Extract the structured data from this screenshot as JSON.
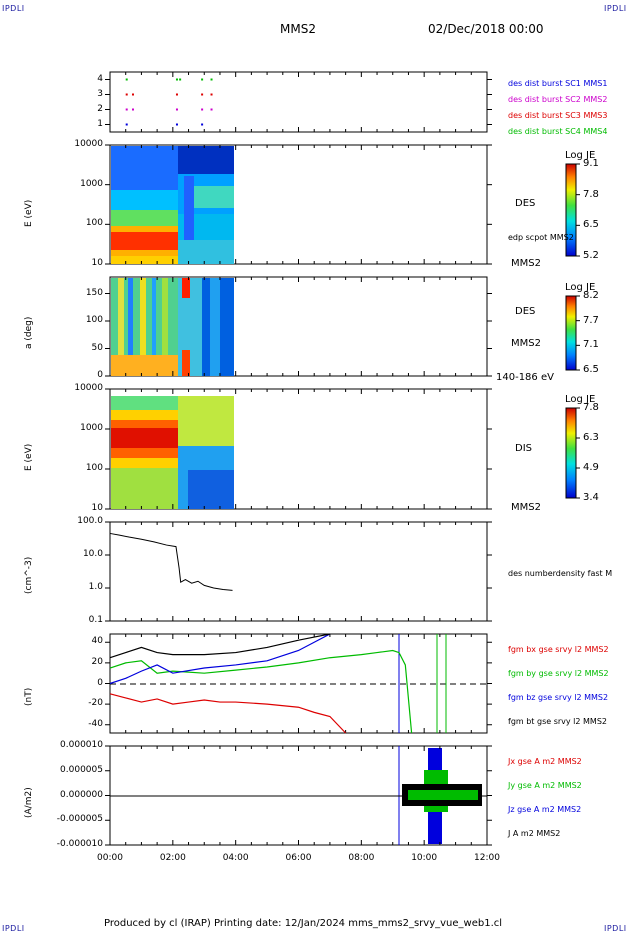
{
  "header": {
    "corner_tl": "IPDLI",
    "corner_tr": "IPDLI",
    "corner_bl": "IPDLI",
    "corner_br": "IPDLI",
    "spacecraft": "MMS2",
    "date": "02/Dec/2018 00:00"
  },
  "footer": {
    "text": "Produced by cl (IRAP)   Printing date: 12/Jan/2024   mms_mms2_srvy_vue_web1.cl"
  },
  "colors": {
    "blue": "#0000dd",
    "magenta": "#cc00cc",
    "red": "#dd0000",
    "green": "#00bb00",
    "black": "#000000"
  },
  "chart_data": [
    {
      "type": "scatter",
      "ylim": [
        0.5,
        4.5
      ],
      "yticks": [
        "1",
        "2",
        "3",
        "4"
      ],
      "legend": [
        {
          "label": "des dist burst SC1 MMS1",
          "color": "#0000dd"
        },
        {
          "label": "des dist burst SC2 MMS2",
          "color": "#cc00cc"
        },
        {
          "label": "des dist burst SC3 MMS3",
          "color": "#dd0000"
        },
        {
          "label": "des dist burst SC4 MMS4",
          "color": "#00bb00"
        }
      ],
      "series": [
        {
          "name": "des dist burst SC1 MMS1",
          "y": 1,
          "x": [
            0.5,
            2.1,
            2.9
          ]
        },
        {
          "name": "des dist burst SC2 MMS2",
          "y": 2,
          "x": [
            0.5,
            0.7,
            2.1,
            2.9,
            3.2
          ]
        },
        {
          "name": "des dist burst SC3 MMS3",
          "y": 3,
          "x": [
            0.5,
            0.7,
            2.1,
            2.9,
            3.2
          ]
        },
        {
          "name": "des dist burst SC4 MMS4",
          "y": 4,
          "x": [
            0.5,
            2.1,
            2.2,
            2.9,
            3.2
          ]
        }
      ]
    },
    {
      "type": "heatmap",
      "ylabel": "E (eV)",
      "yticks": [
        "10",
        "100",
        "1000",
        "10000"
      ],
      "label": "DES",
      "sublabel": "edp scpot MMS2",
      "bottom_label": "MMS2",
      "colorbar": {
        "title": "Log JE",
        "ticks": [
          "9.1",
          "7.8",
          "6.5",
          "5.2"
        ]
      },
      "coverage_hours": [
        0,
        3.9
      ]
    },
    {
      "type": "heatmap",
      "ylabel": "a (deg)",
      "yticks": [
        "0",
        "50",
        "100",
        "150"
      ],
      "label": "DES",
      "sublabel": "MMS2",
      "bottom_label": "140-186 eV",
      "colorbar": {
        "title": "Log JE",
        "ticks": [
          "8.2",
          "7.7",
          "7.1",
          "6.5"
        ]
      },
      "coverage_hours": [
        0,
        3.9
      ]
    },
    {
      "type": "heatmap",
      "ylabel": "E (eV)",
      "yticks": [
        "10",
        "100",
        "1000",
        "10000"
      ],
      "label": "DIS",
      "bottom_label": "MMS2",
      "colorbar": {
        "title": "Log JE",
        "ticks": [
          "7.8",
          "6.3",
          "4.9",
          "3.4"
        ]
      },
      "coverage_hours": [
        0,
        3.9
      ]
    },
    {
      "type": "line",
      "ylabel": "(cm^-3)",
      "yticks": [
        "0.1",
        "1.0",
        "10.0",
        "100.0"
      ],
      "scale": "log",
      "legend": [
        {
          "label": "des numberdensity fast M",
          "color": "#000000"
        }
      ],
      "series": [
        {
          "name": "des numberdensity fast M",
          "x": [
            0.0,
            0.3,
            0.6,
            1.0,
            1.4,
            1.8,
            2.1,
            2.2,
            2.25,
            2.4,
            2.6,
            2.8,
            3.0,
            3.3,
            3.6,
            3.9
          ],
          "y": [
            45,
            40,
            35,
            30,
            25,
            20,
            18,
            4,
            1.5,
            1.8,
            1.4,
            1.6,
            1.2,
            1.0,
            0.9,
            0.85
          ]
        }
      ]
    },
    {
      "type": "line",
      "ylabel": "(nT)",
      "yticks": [
        "-40",
        "-20",
        "0",
        "20",
        "40"
      ],
      "ylim": [
        -48,
        48
      ],
      "legend": [
        {
          "label": "fgm bx gse srvy l2 MMS2",
          "color": "#dd0000"
        },
        {
          "label": "fgm by gse srvy l2 MMS2",
          "color": "#00bb00"
        },
        {
          "label": "fgm bz gse srvy l2 MMS2",
          "color": "#0000dd"
        },
        {
          "label": "fgm bt gse srvy l2 MMS2",
          "color": "#000000"
        }
      ],
      "series": [
        {
          "name": "fgm bx gse srvy l2 MMS2",
          "x": [
            0,
            0.5,
            1,
            1.5,
            2,
            2.5,
            3,
            3.5,
            4,
            5,
            6,
            6.5,
            7,
            7.5
          ],
          "y": [
            -10,
            -14,
            -18,
            -15,
            -20,
            -18,
            -16,
            -18,
            -18,
            -20,
            -23,
            -28,
            -32,
            -48
          ]
        },
        {
          "name": "fgm by gse srvy l2 MMS2",
          "x": [
            0,
            0.5,
            1,
            1.5,
            2,
            3,
            4,
            5,
            6,
            7,
            8,
            8.5,
            9,
            9.2,
            9.4,
            9.6
          ],
          "y": [
            15,
            20,
            22,
            10,
            12,
            10,
            13,
            16,
            20,
            25,
            28,
            30,
            32,
            30,
            18,
            -48
          ]
        },
        {
          "name": "fgm bz gse srvy l2 MMS2",
          "x": [
            0,
            0.5,
            1,
            1.5,
            2,
            3,
            4,
            5,
            6,
            6.5,
            7
          ],
          "y": [
            0,
            5,
            12,
            18,
            10,
            15,
            18,
            22,
            32,
            40,
            48
          ]
        },
        {
          "name": "fgm bt gse srvy l2 MMS2",
          "x": [
            0,
            0.5,
            1,
            1.5,
            2,
            3,
            4,
            5,
            6,
            6.5,
            7
          ],
          "y": [
            25,
            30,
            35,
            30,
            28,
            28,
            30,
            35,
            42,
            45,
            48
          ]
        }
      ]
    },
    {
      "type": "line",
      "ylabel": "(A/m2)",
      "yticks": [
        "-0.000010",
        "-0.000005",
        "0.000000",
        "0.000005",
        "0.000010"
      ],
      "ylim": [
        -1e-05,
        1e-05
      ],
      "legend": [
        {
          "label": "Jx gse A m2 MMS2",
          "color": "#dd0000"
        },
        {
          "label": "Jy gse A m2 MMS2",
          "color": "#00bb00"
        },
        {
          "label": "Jz gse A m2 MMS2",
          "color": "#0000dd"
        },
        {
          "label": "J A m2 MMS2",
          "color": "#000000"
        }
      ],
      "xticks": [
        "00:00",
        "02:00",
        "04:00",
        "06:00",
        "08:00",
        "10:00",
        "12:00"
      ],
      "xlim_hours": [
        0,
        12
      ]
    }
  ]
}
